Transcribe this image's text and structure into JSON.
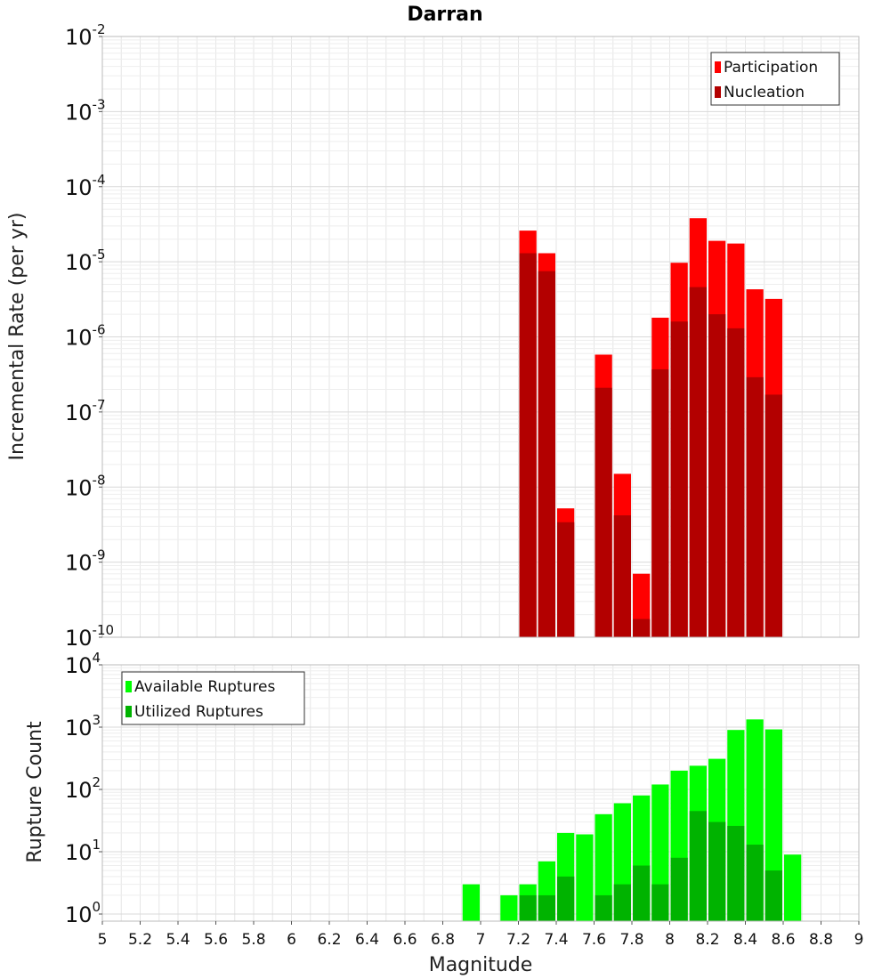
{
  "title": "Darran",
  "colors": {
    "participation": "#ff0000",
    "nucleation": "#b30000",
    "available": "#00ff00",
    "utilized": "#00b300",
    "grid": "#e6e6e6",
    "frame": "#bbbbbb"
  },
  "chart_data": [
    {
      "type": "bar",
      "ylabel": "Incremental Rate (per yr)",
      "yscale": "log",
      "ylim": [
        1e-10,
        0.01
      ],
      "xlim": [
        5,
        9
      ],
      "bin_width": 0.1,
      "grid": true,
      "legend": {
        "position": "top-right",
        "entries": [
          "Participation",
          "Nucleation"
        ]
      },
      "x": [
        7.25,
        7.35,
        7.45,
        7.55,
        7.65,
        7.75,
        7.85,
        7.95,
        8.05,
        8.15,
        8.25,
        8.35,
        8.45,
        8.55
      ],
      "series": [
        {
          "name": "Participation",
          "values": [
            2.6e-05,
            1.3e-05,
            5.2e-09,
            null,
            5.8e-07,
            1.5e-08,
            7e-10,
            1.8e-06,
            9.7e-06,
            3.8e-05,
            1.9e-05,
            1.75e-05,
            4.3e-06,
            3.2e-06
          ]
        },
        {
          "name": "Nucleation",
          "values": [
            1.3e-05,
            7.5e-06,
            3.4e-09,
            null,
            2.1e-07,
            4.2e-09,
            1.75e-10,
            3.7e-07,
            1.6e-06,
            4.6e-06,
            2e-06,
            1.3e-06,
            2.9e-07,
            1.7e-07
          ]
        }
      ]
    },
    {
      "type": "bar",
      "ylabel": "Rupture Count",
      "xlabel": "Magnitude",
      "yscale": "log",
      "ylim": [
        1,
        10000
      ],
      "xlim": [
        5,
        9
      ],
      "bin_width": 0.1,
      "grid": true,
      "legend": {
        "position": "top-left",
        "entries": [
          "Available Ruptures",
          "Utilized Ruptures"
        ]
      },
      "x": [
        6.95,
        7.15,
        7.25,
        7.35,
        7.45,
        7.55,
        7.65,
        7.75,
        7.85,
        7.95,
        8.05,
        8.15,
        8.25,
        8.35,
        8.45,
        8.55,
        8.65
      ],
      "series": [
        {
          "name": "Available Ruptures",
          "values": [
            3,
            2,
            3,
            7,
            20,
            19,
            40,
            60,
            80,
            120,
            200,
            240,
            310,
            900,
            1330,
            920,
            9
          ]
        },
        {
          "name": "Utilized Ruptures",
          "values": [
            null,
            null,
            2,
            2,
            4,
            null,
            2,
            3,
            6,
            3,
            8,
            45,
            30,
            26,
            13,
            5,
            null
          ]
        }
      ],
      "xticks": [
        "5",
        "5.2",
        "5.4",
        "5.6",
        "5.8",
        "6",
        "6.2",
        "6.4",
        "6.6",
        "6.8",
        "7",
        "7.2",
        "7.4",
        "7.6",
        "7.8",
        "8",
        "8.2",
        "8.4",
        "8.6",
        "8.8",
        "9"
      ]
    }
  ],
  "top_yticks": [
    {
      "base": "10",
      "exp": "-2"
    },
    {
      "base": "10",
      "exp": "-3"
    },
    {
      "base": "10",
      "exp": "-4"
    },
    {
      "base": "10",
      "exp": "-5"
    },
    {
      "base": "10",
      "exp": "-6"
    },
    {
      "base": "10",
      "exp": "-7"
    },
    {
      "base": "10",
      "exp": "-8"
    },
    {
      "base": "10",
      "exp": "-9"
    },
    {
      "base": "10",
      "exp": "-10"
    }
  ],
  "bottom_yticks": [
    {
      "base": "10",
      "exp": "4"
    },
    {
      "base": "10",
      "exp": "3"
    },
    {
      "base": "10",
      "exp": "2"
    },
    {
      "base": "10",
      "exp": "1"
    },
    {
      "base": "10",
      "exp": "0"
    }
  ]
}
